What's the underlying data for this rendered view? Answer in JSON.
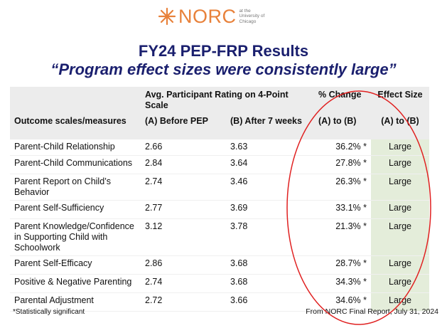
{
  "logo": {
    "name": "NORC",
    "tagline": [
      "at the",
      "University of",
      "Chicago"
    ]
  },
  "title": "FY24 PEP-FRP Results",
  "subtitle": "“Program effect sizes were consistently large”",
  "table": {
    "group_headers": [
      "Avg. Participant Rating on 4-Point Scale",
      "% Change",
      "Effect Size"
    ],
    "columns": [
      "Outcome scales/measures",
      "(A) Before PEP",
      "(B) After 7 weeks",
      "(A) to (B)",
      "(A) to (B)"
    ],
    "rows": [
      [
        "Parent-Child Relationship",
        "2.66",
        "3.63",
        "36.2% *",
        "Large"
      ],
      [
        "Parent-Child Communications",
        "2.84",
        "3.64",
        "27.8% *",
        "Large"
      ],
      [
        "Parent Report on Child’s Behavior",
        "2.74",
        "3.46",
        "26.3% *",
        "Large"
      ],
      [
        "Parent Self-Sufficiency",
        "2.77",
        "3.69",
        "33.1% *",
        "Large"
      ],
      [
        "Parent Knowledge/Confidence in Supporting Child with Schoolwork",
        "3.12",
        "3.78",
        "21.3% *",
        "Large"
      ],
      [
        "Parent Self-Efficacy",
        "2.86",
        "3.68",
        "28.7% *",
        "Large"
      ],
      [
        "Positive & Negative Parenting",
        "2.74",
        "3.68",
        "34.3% *",
        "Large"
      ],
      [
        "Parental Adjustment",
        "2.72",
        "3.66",
        "34.6% *",
        "Large"
      ]
    ]
  },
  "footnote": "*Statistically significant",
  "source": "From NORC Final Report, July 31, 2024"
}
